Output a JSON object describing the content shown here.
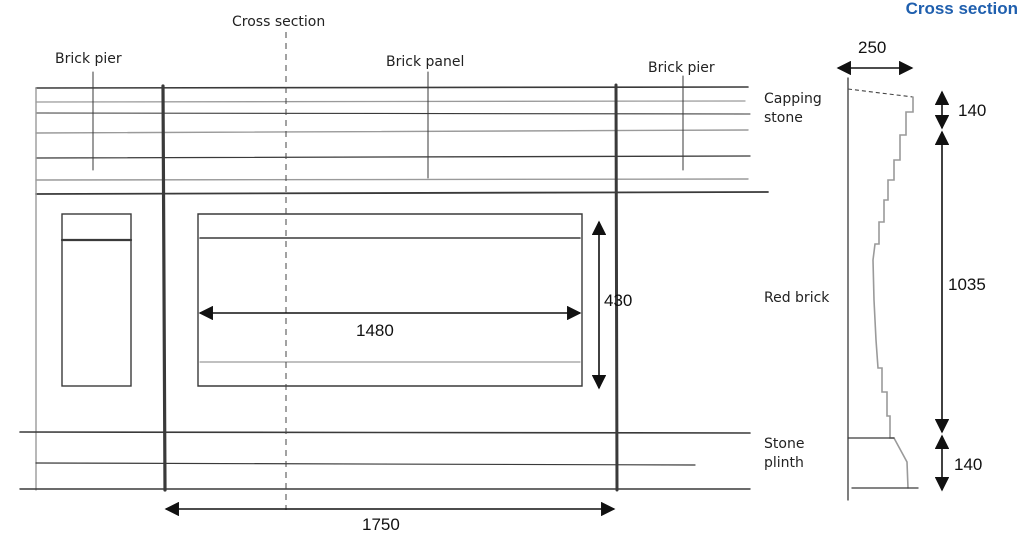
{
  "header": {
    "title": "Cross section"
  },
  "labels": {
    "cross_section": "Cross section",
    "brick_pier_left": "Brick pier",
    "brick_panel": "Brick panel",
    "brick_pier_right": "Brick pier",
    "capping_stone_1": "Capping",
    "capping_stone_2": "stone",
    "red_brick": "Red brick",
    "stone_plinth_1": "Stone",
    "stone_plinth_2": "plinth"
  },
  "dimensions": {
    "panel_width": "1480",
    "panel_height": "430",
    "overall_width": "1750",
    "section_width": "250",
    "capping_height": "140",
    "brick_height": "1035",
    "plinth_height": "140"
  }
}
